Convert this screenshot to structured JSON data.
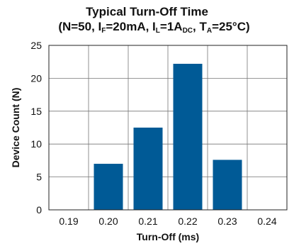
{
  "chart_data": {
    "type": "bar",
    "title": "Typical Turn-Off Time",
    "subtitle": {
      "open": "(N=50, I",
      "sub_f": "F",
      "p2": "=20mA, I",
      "sub_l": "L",
      "p3": "=1A",
      "sub_dc": "DC",
      "p4": ", T",
      "sub_a": "A",
      "p5": "=25°C)"
    },
    "xlabel": "Turn-Off (ms)",
    "ylabel": "Device Count (N)",
    "categories": [
      "0.19",
      "0.20",
      "0.21",
      "0.22",
      "0.23",
      "0.24"
    ],
    "values": [
      0,
      7,
      12.5,
      22.2,
      7.6,
      0
    ],
    "ylim": [
      0,
      25
    ],
    "yticks": [
      "0",
      "5",
      "10",
      "15",
      "20",
      "25"
    ],
    "grid": true,
    "bar_color": "#005a96"
  }
}
